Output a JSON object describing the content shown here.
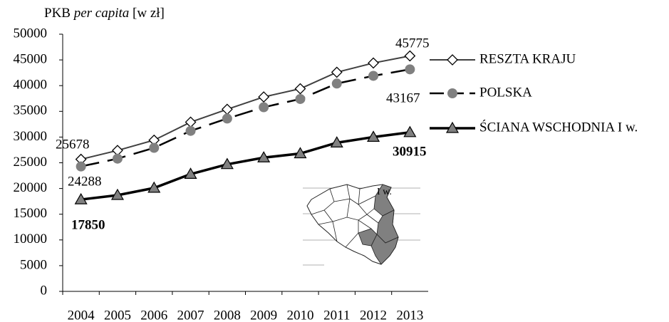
{
  "chart_data": {
    "type": "line",
    "ylabel": [
      "PKB ",
      "per capita",
      " [w zł]"
    ],
    "categories": [
      "2004",
      "2005",
      "2006",
      "2007",
      "2008",
      "2009",
      "2010",
      "2011",
      "2012",
      "2013"
    ],
    "series": [
      {
        "name": "RESZTA KRAJU",
        "color": "#404040",
        "marker": "diamond",
        "values": [
          25678,
          27400,
          29400,
          32900,
          35400,
          37800,
          39400,
          42600,
          44400,
          45775
        ]
      },
      {
        "name": "POLSKA",
        "color": "#000000",
        "marker": "circle",
        "dashed": true,
        "values": [
          24288,
          25800,
          27900,
          31200,
          33600,
          35800,
          37400,
          40400,
          41900,
          43167
        ]
      },
      {
        "name": "ŚCIANA WSCHODNIA I w.",
        "color": "#000000",
        "marker": "triangle",
        "values": [
          17850,
          18700,
          20100,
          22800,
          24700,
          26000,
          26800,
          28900,
          30000,
          30915
        ]
      }
    ],
    "ylim": [
      0,
      50000
    ],
    "yticks": [
      0,
      5000,
      10000,
      15000,
      20000,
      25000,
      30000,
      35000,
      40000,
      45000,
      50000
    ],
    "legend": "right",
    "map_label": "I w."
  }
}
